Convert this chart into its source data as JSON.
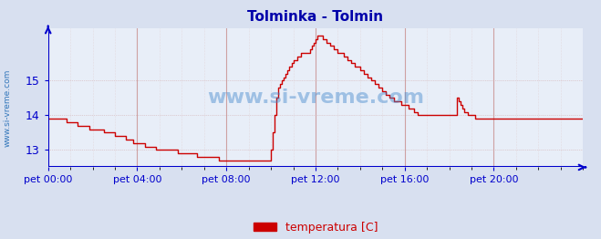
{
  "title": "Tolminka - Tolmin",
  "title_color": "#0000aa",
  "bg_color": "#d8e0f0",
  "plot_bg_color": "#e8eef8",
  "watermark": "www.si-vreme.com",
  "legend_label": "temperatura [C]",
  "legend_color": "#cc0000",
  "ylabel_left": "www.si-vreme.com",
  "xtick_positions": [
    0,
    48,
    96,
    144,
    192,
    240
  ],
  "xtick_labels": [
    "pet 00:00",
    "pet 04:00",
    "pet 08:00",
    "pet 12:00",
    "pet 16:00",
    "pet 20:00"
  ],
  "ytick_labels": [
    13,
    14,
    15
  ],
  "ylim": [
    12.5,
    16.5
  ],
  "xlim": [
    0,
    288
  ],
  "grid_color_major": "#cc9999",
  "grid_color_minor": "#ddbbbb",
  "line_color": "#cc0000",
  "axis_color": "#0000cc",
  "temp_data": [
    13.9,
    13.9,
    13.9,
    13.9,
    13.9,
    13.9,
    13.9,
    13.9,
    13.9,
    13.9,
    13.8,
    13.8,
    13.8,
    13.8,
    13.8,
    13.8,
    13.7,
    13.7,
    13.7,
    13.7,
    13.7,
    13.7,
    13.6,
    13.6,
    13.6,
    13.6,
    13.6,
    13.6,
    13.6,
    13.6,
    13.5,
    13.5,
    13.5,
    13.5,
    13.5,
    13.5,
    13.4,
    13.4,
    13.4,
    13.4,
    13.4,
    13.4,
    13.3,
    13.3,
    13.3,
    13.3,
    13.2,
    13.2,
    13.2,
    13.2,
    13.2,
    13.2,
    13.1,
    13.1,
    13.1,
    13.1,
    13.1,
    13.1,
    13.0,
    13.0,
    13.0,
    13.0,
    13.0,
    13.0,
    13.0,
    13.0,
    13.0,
    13.0,
    13.0,
    13.0,
    12.9,
    12.9,
    12.9,
    12.9,
    12.9,
    12.9,
    12.9,
    12.9,
    12.9,
    12.9,
    12.8,
    12.8,
    12.8,
    12.8,
    12.8,
    12.8,
    12.8,
    12.8,
    12.8,
    12.8,
    12.8,
    12.8,
    12.7,
    12.7,
    12.7,
    12.7,
    12.7,
    12.7,
    12.7,
    12.7,
    12.7,
    12.7,
    12.7,
    12.7,
    12.7,
    12.7,
    12.7,
    12.7,
    12.7,
    12.7,
    12.7,
    12.7,
    12.7,
    12.7,
    12.7,
    12.7,
    12.7,
    12.7,
    12.7,
    12.7,
    13.0,
    13.5,
    14.0,
    14.5,
    14.8,
    14.9,
    15.0,
    15.1,
    15.2,
    15.3,
    15.4,
    15.5,
    15.6,
    15.6,
    15.7,
    15.7,
    15.8,
    15.8,
    15.8,
    15.8,
    15.8,
    15.9,
    16.0,
    16.1,
    16.2,
    16.3,
    16.3,
    16.3,
    16.2,
    16.2,
    16.1,
    16.1,
    16.0,
    16.0,
    15.9,
    15.9,
    15.8,
    15.8,
    15.8,
    15.7,
    15.7,
    15.6,
    15.6,
    15.5,
    15.5,
    15.4,
    15.4,
    15.4,
    15.3,
    15.3,
    15.2,
    15.2,
    15.1,
    15.1,
    15.0,
    15.0,
    14.9,
    14.9,
    14.8,
    14.8,
    14.7,
    14.7,
    14.6,
    14.6,
    14.5,
    14.5,
    14.4,
    14.4,
    14.4,
    14.4,
    14.3,
    14.3,
    14.3,
    14.3,
    14.2,
    14.2,
    14.2,
    14.1,
    14.1,
    14.0,
    14.0,
    14.0,
    14.0,
    14.0,
    14.0,
    14.0,
    14.0,
    14.0,
    14.0,
    14.0,
    14.0,
    14.0,
    14.0,
    14.0,
    14.0,
    14.0,
    14.0,
    14.0,
    14.0,
    14.0,
    14.5,
    14.4,
    14.3,
    14.2,
    14.1,
    14.1,
    14.0,
    14.0,
    14.0,
    14.0,
    13.9,
    13.9,
    13.9,
    13.9,
    13.9,
    13.9,
    13.9,
    13.9,
    13.9,
    13.9,
    13.9,
    13.9,
    13.9,
    13.9,
    13.9,
    13.9,
    13.9,
    13.9,
    13.9,
    13.9,
    13.9,
    13.9,
    13.9,
    13.9,
    13.9,
    13.9,
    13.9,
    13.9,
    13.9,
    13.9,
    13.9,
    13.9,
    13.9,
    13.9,
    13.9,
    13.9,
    13.9,
    13.9,
    13.9,
    13.9,
    13.9,
    13.9,
    13.9,
    13.9,
    13.9,
    13.9,
    13.9,
    13.9,
    13.9,
    13.9,
    13.9,
    13.9,
    13.9,
    13.9,
    13.9,
    13.9,
    13.9,
    13.9,
    13.9,
    13.9,
    13.9,
    13.9,
    13.9,
    13.9,
    13.9,
    13.9,
    13.9,
    13.9,
    13.9,
    13.9,
    13.9,
    13.9,
    13.9,
    13.9,
    13.9,
    13.9,
    13.9,
    13.9
  ]
}
